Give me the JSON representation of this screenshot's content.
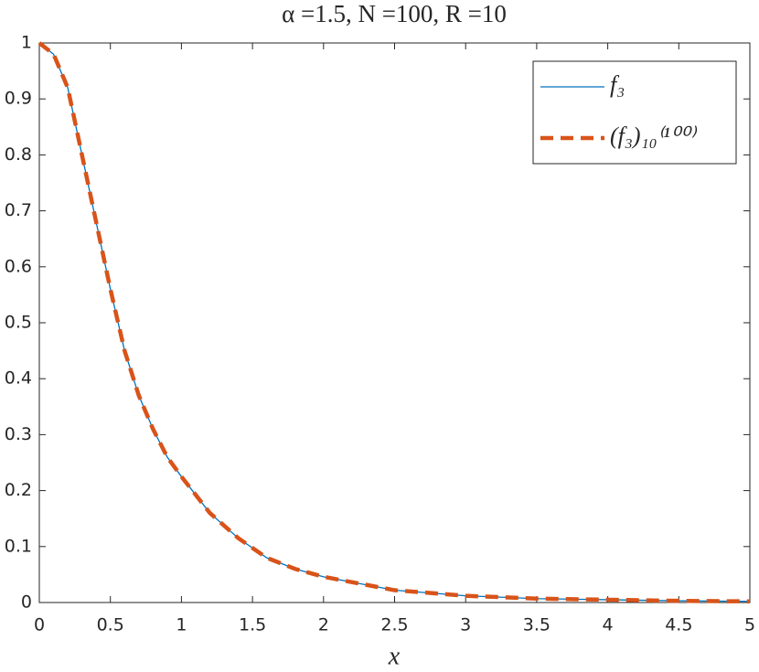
{
  "chart_data": {
    "type": "line",
    "title": "α =1.5, N =100, R =10",
    "x_label": "x",
    "x": [
      0,
      0.1,
      0.2,
      0.3,
      0.4,
      0.5,
      0.6,
      0.7,
      0.8,
      0.9,
      1,
      1.2,
      1.4,
      1.6,
      1.8,
      2,
      2.5,
      3,
      3.5,
      4,
      4.5,
      5
    ],
    "series": [
      {
        "name": "f₃",
        "color": "#0072bd",
        "dash": false,
        "values": [
          1,
          0.98,
          0.92,
          0.8,
          0.68,
          0.56,
          0.45,
          0.37,
          0.31,
          0.26,
          0.225,
          0.16,
          0.115,
          0.08,
          0.06,
          0.046,
          0.022,
          0.012,
          0.007,
          0.005,
          0.003,
          0.002
        ]
      },
      {
        "name": "(f₃)₁₀⁽¹⁰⁰⁾",
        "color": "#d95319",
        "dash": true,
        "values": [
          1,
          0.98,
          0.92,
          0.8,
          0.68,
          0.56,
          0.45,
          0.37,
          0.31,
          0.26,
          0.225,
          0.16,
          0.115,
          0.08,
          0.06,
          0.046,
          0.022,
          0.012,
          0.007,
          0.005,
          0.003,
          0.002
        ]
      }
    ],
    "xlim": [
      0,
      5
    ],
    "xticks": [
      0,
      0.5,
      1,
      1.5,
      2,
      2.5,
      3,
      3.5,
      4,
      4.5,
      5
    ],
    "ylim": [
      0,
      1
    ],
    "yticks": [
      0,
      0.1,
      0.2,
      0.3,
      0.4,
      0.5,
      0.6,
      0.7,
      0.8,
      0.9,
      1
    ],
    "grid": false,
    "legend": "top-right"
  }
}
